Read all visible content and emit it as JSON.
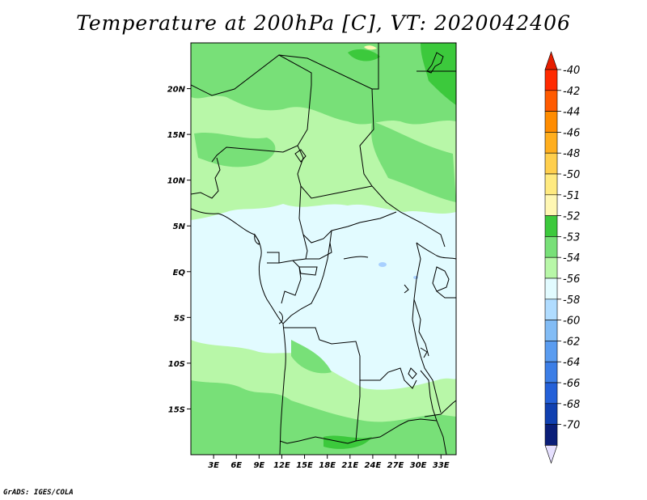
{
  "title": "Temperature at 200hPa [C], VT: 2020042406",
  "credit": "GrADS: IGES/COLA",
  "map": {
    "lon_range": [
      0,
      35
    ],
    "lat_range": [
      -20,
      25
    ],
    "lat_ticks": [
      {
        "value": 20,
        "label": "20N"
      },
      {
        "value": 15,
        "label": "15N"
      },
      {
        "value": 10,
        "label": "10N"
      },
      {
        "value": 5,
        "label": "5N"
      },
      {
        "value": 0,
        "label": "EQ"
      },
      {
        "value": -5,
        "label": "5S"
      },
      {
        "value": -10,
        "label": "10S"
      },
      {
        "value": -15,
        "label": "15S"
      }
    ],
    "lon_ticks": [
      {
        "value": 3,
        "label": "3E"
      },
      {
        "value": 6,
        "label": "6E"
      },
      {
        "value": 9,
        "label": "9E"
      },
      {
        "value": 12,
        "label": "12E"
      },
      {
        "value": 15,
        "label": "15E"
      },
      {
        "value": 18,
        "label": "18E"
      },
      {
        "value": 21,
        "label": "21E"
      },
      {
        "value": 24,
        "label": "24E"
      },
      {
        "value": 27,
        "label": "27E"
      },
      {
        "value": 30,
        "label": "30E"
      },
      {
        "value": 33,
        "label": "33E"
      }
    ]
  },
  "colorbar": {
    "levels": [
      {
        "label": "-40",
        "color": "#ff2a00"
      },
      {
        "label": "-42",
        "color": "#ff5a00"
      },
      {
        "label": "-44",
        "color": "#ff8c00"
      },
      {
        "label": "-46",
        "color": "#ffae1e"
      },
      {
        "label": "-48",
        "color": "#ffcf4d"
      },
      {
        "label": "-50",
        "color": "#ffea80"
      },
      {
        "label": "-51",
        "color": "#fff7b3"
      },
      {
        "label": "-52",
        "color": "#3cc93c"
      },
      {
        "label": "-53",
        "color": "#78e078"
      },
      {
        "label": "-54",
        "color": "#b8f7a8"
      },
      {
        "label": "-56",
        "color": "#e2fbff"
      },
      {
        "label": "-58",
        "color": "#b0dcff"
      },
      {
        "label": "-60",
        "color": "#82bcf5"
      },
      {
        "label": "-62",
        "color": "#5a9cf0"
      },
      {
        "label": "-64",
        "color": "#3c7ee6"
      },
      {
        "label": "-66",
        "color": "#2460d8"
      },
      {
        "label": "-68",
        "color": "#1040b0"
      },
      {
        "label": "-70",
        "color": "#0a1e78"
      }
    ],
    "top_arrow_color": "#e61e00",
    "bottom_arrow_color": "#e6e0ff"
  },
  "field_colors": {
    "warm": "#e2fbff",
    "band_light": "#b8f7a8",
    "band_mid": "#78e078",
    "band_dark": "#3cc93c",
    "spot_yellow": "#fff7b3",
    "spot_blue": "#a8d0ff"
  }
}
